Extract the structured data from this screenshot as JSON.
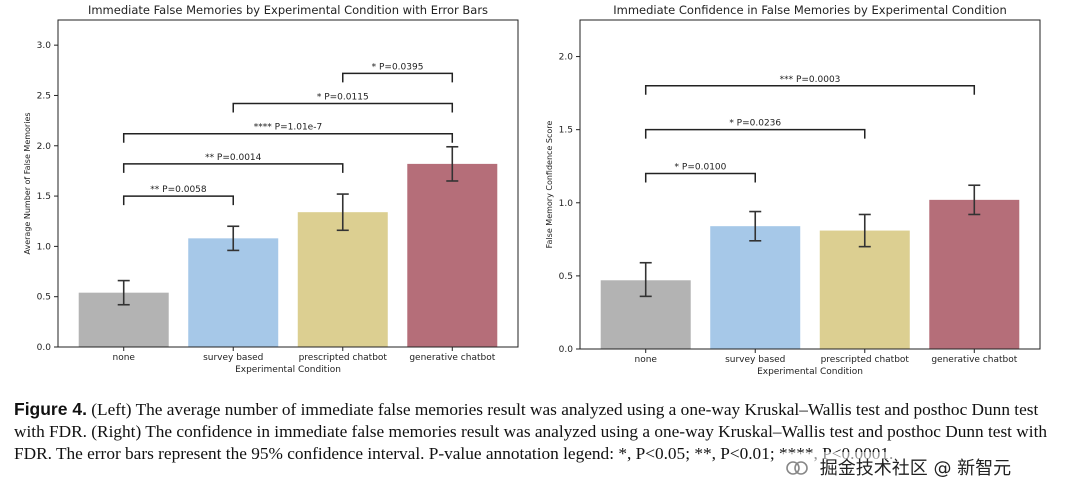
{
  "chart_data": [
    {
      "type": "bar",
      "title": "Immediate False Memories by Experimental Condition with Error Bars",
      "xlabel": "Experimental Condition",
      "ylabel": "Average Number of False Memories",
      "categories": [
        "none",
        "survey based",
        "prescripted chatbot",
        "generative chatbot"
      ],
      "values": [
        0.54,
        1.08,
        1.34,
        1.82
      ],
      "error_low": [
        0.42,
        0.96,
        1.16,
        1.65
      ],
      "error_high": [
        0.66,
        1.2,
        1.52,
        1.99
      ],
      "colors": [
        "#b3b3b3",
        "#a6c8e8",
        "#dccf91",
        "#b56e79"
      ],
      "ylim": [
        0,
        3.25
      ],
      "yticks": [
        0.0,
        0.5,
        1.0,
        1.5,
        2.0,
        2.5,
        3.0
      ],
      "ytick_labels": [
        "0.0",
        "0.5",
        "1.0",
        "1.5",
        "2.0",
        "2.5",
        "3.0"
      ],
      "brackets": [
        {
          "from": 0,
          "to": 1,
          "y": 1.5,
          "label": "** P=0.0058"
        },
        {
          "from": 0,
          "to": 2,
          "y": 1.82,
          "label": "** P=0.0014"
        },
        {
          "from": 0,
          "to": 3,
          "y": 2.12,
          "label": "**** P=1.01e-7"
        },
        {
          "from": 1,
          "to": 3,
          "y": 2.42,
          "label": "* P=0.0115"
        },
        {
          "from": 2,
          "to": 3,
          "y": 2.72,
          "label": "* P=0.0395"
        }
      ]
    },
    {
      "type": "bar",
      "title": "Immediate Confidence in False Memories by Experimental Condition",
      "xlabel": "Experimental Condition",
      "ylabel": "False Memory Confidence Score",
      "categories": [
        "none",
        "survey based",
        "prescripted chatbot",
        "generative chatbot"
      ],
      "values": [
        0.47,
        0.84,
        0.81,
        1.02
      ],
      "error_low": [
        0.36,
        0.74,
        0.7,
        0.92
      ],
      "error_high": [
        0.59,
        0.94,
        0.92,
        1.12
      ],
      "colors": [
        "#b3b3b3",
        "#a6c8e8",
        "#dccf91",
        "#b56e79"
      ],
      "ylim": [
        0,
        2.25
      ],
      "yticks": [
        0.0,
        0.5,
        1.0,
        1.5,
        2.0
      ],
      "ytick_labels": [
        "0.0",
        "0.5",
        "1.0",
        "1.5",
        "2.0"
      ],
      "brackets": [
        {
          "from": 0,
          "to": 1,
          "y": 1.2,
          "label": "* P=0.0100"
        },
        {
          "from": 0,
          "to": 2,
          "y": 1.5,
          "label": "* P=0.0236"
        },
        {
          "from": 0,
          "to": 3,
          "y": 1.8,
          "label": "*** P=0.0003"
        }
      ]
    }
  ],
  "caption": {
    "figure_label": "Figure 4.",
    "text": "(Left) The average number of immediate false memories result was analyzed using a one-way Kruskal–Wallis test and posthoc Dunn test with FDR. (Right) The confidence in immediate false memories result was analyzed using a one-way Kruskal–Wallis test and posthoc Dunn test with FDR. The error bars represent the 95% confidence interval. P-value annotation legend: *, P<0.05; **, P<0.01; ****, P<0.0001."
  },
  "watermark": {
    "text": "掘金技术社区 @ 新智元"
  }
}
